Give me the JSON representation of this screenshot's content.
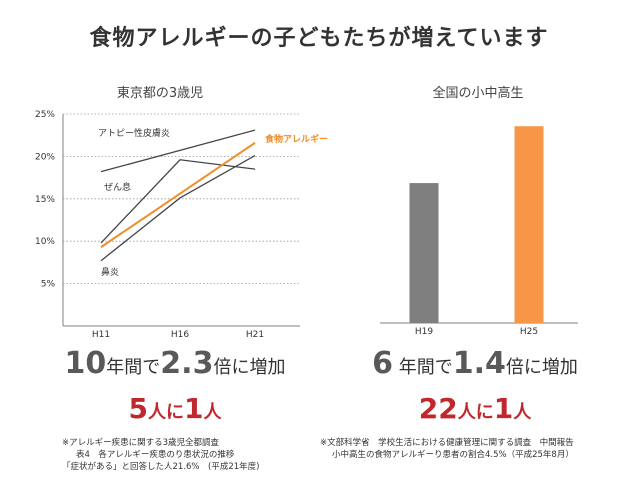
{
  "title": "食物アレルギーの子どもたちが増えています",
  "chart_data": [
    {
      "type": "line",
      "title": "東京都の3歳児",
      "x": [
        "H11",
        "H16",
        "H21"
      ],
      "ylim": [
        0,
        25
      ],
      "yticks": [
        "5%",
        "10%",
        "15%",
        "20%",
        "25%"
      ],
      "series": [
        {
          "name": "アトピー性皮膚炎",
          "values": [
            18.2,
            null,
            23.1
          ],
          "color": "#444444"
        },
        {
          "name": "ぜん息",
          "values": [
            9.8,
            19.6,
            18.5
          ],
          "color": "#444444"
        },
        {
          "name": "鼻炎",
          "values": [
            7.7,
            15.1,
            20.1
          ],
          "color": "#444444"
        },
        {
          "name": "食物アレルギー",
          "values": [
            9.3,
            null,
            21.6
          ],
          "color": "#f28c28"
        }
      ]
    },
    {
      "type": "bar",
      "title": "全国の小中高生",
      "categories": [
        "H19",
        "H25"
      ],
      "values": [
        3.2,
        4.5
      ],
      "colors": [
        "#7f7f7f",
        "#f79646"
      ]
    }
  ],
  "left_stat": {
    "num1": "10",
    "text1": "年間で",
    "num2": "2.3",
    "text2": "倍に増加"
  },
  "left_ratio": {
    "num1": "5",
    "text1": "人に",
    "num2": "1",
    "text2": "人"
  },
  "right_stat": {
    "num1": "6",
    "text1": " 年間で",
    "num2": "1.4",
    "text2": "倍に増加"
  },
  "right_ratio": {
    "num1": "22",
    "text1": "人に",
    "num2": "1",
    "text2": "人"
  },
  "notes_left": [
    "※アレルギー疾患に関する3歳児全都調査",
    "表4　各アレルギー疾患のり患状況の推移",
    "「症状がある」と回答した人21.6%　(平成21年度)"
  ],
  "notes_right": [
    "※文部科学省　学校生活における健康管理に関する調査　中間報告",
    "小中高生の食物アレルギーり患者の割合4.5%（平成25年8月）"
  ],
  "colors": {
    "orange": "#f28c28",
    "bar_orange": "#f79646",
    "bar_gray": "#7f7f7f",
    "red": "#c0282d"
  }
}
